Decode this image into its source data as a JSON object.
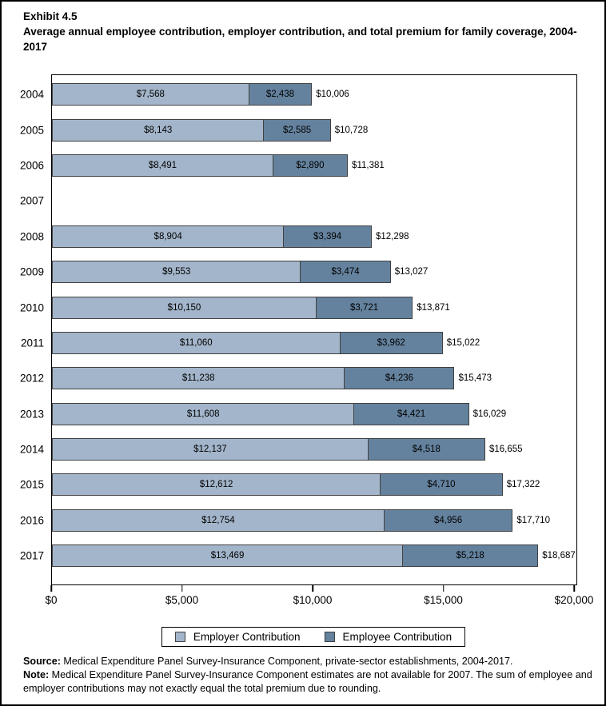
{
  "title": {
    "exhibit": "Exhibit 4.5",
    "text": "Average annual employee contribution, employer contribution, and total premium for family coverage, 2004-2017"
  },
  "chart_data": {
    "type": "bar",
    "orientation": "horizontal",
    "stacked": true,
    "title": "Average annual employee contribution, employer contribution, and total premium for family coverage, 2004-2017",
    "categories": [
      "2004",
      "2005",
      "2006",
      "2007",
      "2008",
      "2009",
      "2010",
      "2011",
      "2012",
      "2013",
      "2014",
      "2015",
      "2016",
      "2017"
    ],
    "series": [
      {
        "name": "Employer Contribution",
        "color": "#a3b5ca",
        "values": [
          7568,
          8143,
          8491,
          null,
          8904,
          9553,
          10150,
          11060,
          11238,
          11608,
          12137,
          12612,
          12754,
          13469
        ]
      },
      {
        "name": "Employee Contribution",
        "color": "#64829e",
        "values": [
          2438,
          2585,
          2890,
          null,
          3394,
          3474,
          3721,
          3962,
          4236,
          4421,
          4518,
          4710,
          4956,
          5218
        ]
      }
    ],
    "totals": [
      10006,
      10728,
      11381,
      null,
      12298,
      13027,
      13871,
      15022,
      15473,
      16029,
      16655,
      17322,
      17710,
      18687
    ],
    "xlabel": "",
    "ylabel": "",
    "xlim": [
      0,
      20000
    ],
    "x_ticks": [
      "$0",
      "$5,000",
      "$10,000",
      "$15,000",
      "$20,000"
    ],
    "x_tick_values": [
      0,
      5000,
      10000,
      15000,
      20000
    ],
    "grid": false,
    "legend_position": "bottom",
    "missing_year": "2007",
    "bar_border_color": "#404040"
  },
  "footer": {
    "source_label": "Source:",
    "source_text": " Medical Expenditure Panel Survey-Insurance Component, private-sector establishments, 2004-2017.",
    "note_label": "Note:",
    "note_text": " Medical Expenditure Panel Survey-Insurance Component estimates are not available for 2007. The sum of employee and employer contributions may not exactly equal the total premium due to rounding."
  }
}
